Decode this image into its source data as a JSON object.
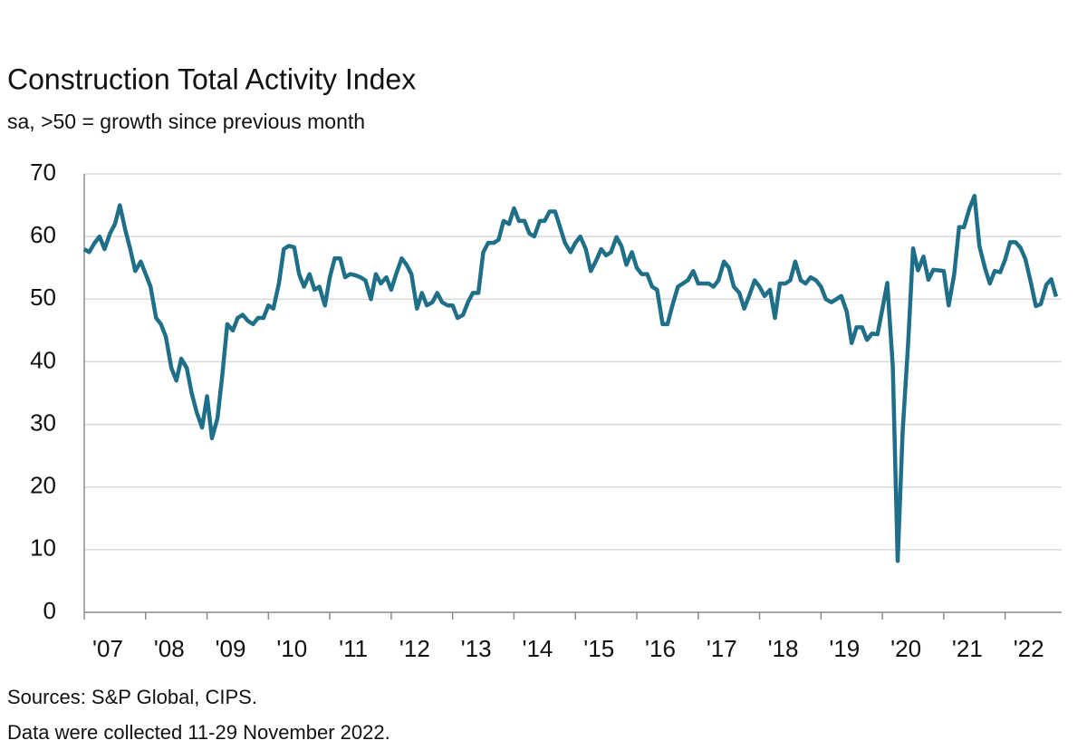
{
  "chart_data": {
    "type": "line",
    "title": "Construction Total Activity Index",
    "subtitle": "sa, >50 = growth since previous month",
    "source": "Sources: S&P Global, CIPS.",
    "note": "Data were collected 11-29 November 2022.",
    "x": [
      2007.0,
      2007.08,
      2007.17,
      2007.25,
      2007.33,
      2007.42,
      2007.5,
      2007.58,
      2007.67,
      2007.75,
      2007.83,
      2007.92,
      2008.0,
      2008.08,
      2008.17,
      2008.25,
      2008.33,
      2008.42,
      2008.5,
      2008.58,
      2008.67,
      2008.75,
      2008.83,
      2008.92,
      2009.0,
      2009.08,
      2009.17,
      2009.25,
      2009.33,
      2009.42,
      2009.5,
      2009.58,
      2009.67,
      2009.75,
      2009.83,
      2009.92,
      2010.0,
      2010.08,
      2010.17,
      2010.25,
      2010.33,
      2010.42,
      2010.5,
      2010.58,
      2010.67,
      2010.75,
      2010.83,
      2010.92,
      2011.0,
      2011.08,
      2011.17,
      2011.25,
      2011.33,
      2011.42,
      2011.5,
      2011.58,
      2011.67,
      2011.75,
      2011.83,
      2011.92,
      2012.0,
      2012.08,
      2012.17,
      2012.25,
      2012.33,
      2012.42,
      2012.5,
      2012.58,
      2012.67,
      2012.75,
      2012.83,
      2012.92,
      2013.0,
      2013.08,
      2013.17,
      2013.25,
      2013.33,
      2013.42,
      2013.5,
      2013.58,
      2013.67,
      2013.75,
      2013.83,
      2013.92,
      2014.0,
      2014.08,
      2014.17,
      2014.25,
      2014.33,
      2014.42,
      2014.5,
      2014.58,
      2014.67,
      2014.75,
      2014.83,
      2014.92,
      2015.0,
      2015.08,
      2015.17,
      2015.25,
      2015.33,
      2015.42,
      2015.5,
      2015.58,
      2015.67,
      2015.75,
      2015.83,
      2015.92,
      2016.0,
      2016.08,
      2016.17,
      2016.25,
      2016.33,
      2016.42,
      2016.5,
      2016.58,
      2016.67,
      2016.75,
      2016.83,
      2016.92,
      2017.0,
      2017.08,
      2017.17,
      2017.25,
      2017.33,
      2017.42,
      2017.5,
      2017.58,
      2017.67,
      2017.75,
      2017.83,
      2017.92,
      2018.0,
      2018.08,
      2018.17,
      2018.25,
      2018.33,
      2018.42,
      2018.5,
      2018.58,
      2018.67,
      2018.75,
      2018.83,
      2018.92,
      2019.0,
      2019.08,
      2019.17,
      2019.25,
      2019.33,
      2019.42,
      2019.5,
      2019.58,
      2019.67,
      2019.75,
      2019.83,
      2019.92,
      2020.0,
      2020.08,
      2020.17,
      2020.25,
      2020.33,
      2020.42,
      2020.5,
      2020.58,
      2020.67,
      2020.75,
      2020.83,
      2020.92,
      2021.0,
      2021.08,
      2021.17,
      2021.25,
      2021.33,
      2021.42,
      2021.5,
      2021.58,
      2021.67,
      2021.75,
      2021.83,
      2021.92,
      2022.0,
      2022.08,
      2022.17,
      2022.25,
      2022.33,
      2022.42,
      2022.5,
      2022.58,
      2022.67,
      2022.75,
      2022.83
    ],
    "series": [
      {
        "name": "Construction Total Activity Index",
        "color": "#1f6f88",
        "values": [
          58,
          57.5,
          59,
          60,
          58,
          60.5,
          62,
          65,
          61,
          58,
          54.5,
          56,
          54,
          52,
          47,
          46,
          44,
          39,
          37,
          40.5,
          39,
          35,
          32,
          29.5,
          34.5,
          27.8,
          31,
          38,
          46,
          45,
          47,
          47.5,
          46.5,
          46,
          47,
          47,
          49,
          48.5,
          52.5,
          58,
          58.5,
          58.3,
          54,
          52,
          54,
          51.5,
          52,
          49,
          53.5,
          56.5,
          56.5,
          53.5,
          54,
          53.8,
          53.5,
          53,
          50,
          54,
          52.5,
          53.5,
          51.5,
          54,
          56.5,
          55.5,
          54,
          48.5,
          51,
          49,
          49.5,
          51,
          49.5,
          49,
          49,
          47,
          47.5,
          49.5,
          51,
          51,
          57.5,
          59,
          59,
          59.5,
          62.5,
          62,
          64.5,
          62.5,
          62.5,
          60.5,
          60,
          62.5,
          62.5,
          64,
          64,
          61.5,
          59,
          57.5,
          59,
          60,
          58,
          54.5,
          56,
          58,
          57,
          57.5,
          59.9,
          58.5,
          55.5,
          57.5,
          55,
          54,
          54,
          52,
          51.5,
          46,
          46,
          49,
          52,
          52.5,
          53,
          54.5,
          52.5,
          52.5,
          52.5,
          52,
          53,
          56,
          55,
          52,
          51,
          48.5,
          50.5,
          53,
          52,
          50.5,
          51.5,
          47,
          52.5,
          52.5,
          53,
          56,
          53,
          52.5,
          53.5,
          53,
          52,
          50,
          49.5,
          50,
          50.5,
          48,
          43,
          45.5,
          45.5,
          43.5,
          44.5,
          44.4,
          48.4,
          52.6,
          39.3,
          8.2,
          28.9,
          43.1,
          58.1,
          54.6,
          56.8,
          53.1,
          54.7,
          54.6,
          54.5,
          49,
          54,
          61.5,
          61.5,
          64.5,
          66.5,
          58.5,
          55,
          52.5,
          54.5,
          54.3,
          56.3,
          59.1,
          59.1,
          58.2,
          56.4,
          52.6,
          48.9,
          49.2,
          52.3,
          53.2,
          50.4
        ]
      }
    ],
    "xlim": [
      2007,
      2022.92
    ],
    "xticks": [
      {
        "value": 2007,
        "label": "'07"
      },
      {
        "value": 2008,
        "label": "'08"
      },
      {
        "value": 2009,
        "label": "'09"
      },
      {
        "value": 2010,
        "label": "'10"
      },
      {
        "value": 2011,
        "label": "'11"
      },
      {
        "value": 2012,
        "label": "'12"
      },
      {
        "value": 2013,
        "label": "'13"
      },
      {
        "value": 2014,
        "label": "'14"
      },
      {
        "value": 2015,
        "label": "'15"
      },
      {
        "value": 2016,
        "label": "'16"
      },
      {
        "value": 2017,
        "label": "'17"
      },
      {
        "value": 2018,
        "label": "'18"
      },
      {
        "value": 2019,
        "label": "'19"
      },
      {
        "value": 2020,
        "label": "'20"
      },
      {
        "value": 2021,
        "label": "'21"
      },
      {
        "value": 2022,
        "label": "'22"
      }
    ],
    "ylim": [
      0,
      70
    ],
    "yticks": [
      0,
      10,
      20,
      30,
      40,
      50,
      60,
      70
    ],
    "grid": true
  }
}
